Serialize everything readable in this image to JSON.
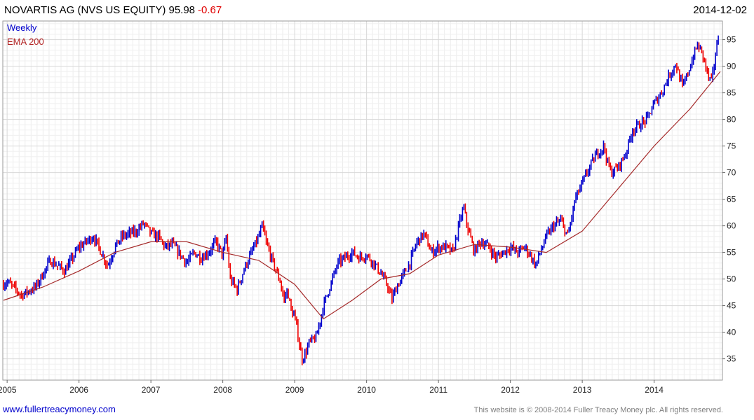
{
  "header": {
    "title": "NOVARTIS AG (NVS US EQUITY) 95.98",
    "change": "-0.67",
    "date": "2014-12-02"
  },
  "legend": {
    "weekly": "Weekly",
    "ema": "EMA 200"
  },
  "footer": {
    "site": "www.fullertreacymoney.com",
    "copyright": "This website is © 2008-2014 Fuller Treacy Money plc. All rights reserved."
  },
  "colors": {
    "up": "#0000cc",
    "down": "#ee0000",
    "ema": "#a52a2a",
    "grid": "#d8d8d8"
  },
  "chart_data": {
    "type": "line",
    "grid": true,
    "y_axis_side": "right",
    "xlim": [
      2004.94,
      2014.95
    ],
    "ylim": [
      31,
      98.5
    ],
    "x_ticks": [
      2005,
      2006,
      2007,
      2008,
      2009,
      2010,
      2011,
      2012,
      2013,
      2014
    ],
    "x_tick_labels": [
      "2005",
      "2006",
      "2007",
      "2008",
      "2009",
      "2010",
      "2011",
      "2012",
      "2013",
      "2014"
    ],
    "y_ticks": [
      35,
      40,
      45,
      50,
      55,
      60,
      65,
      70,
      75,
      80,
      85,
      90,
      95
    ],
    "y_tick_labels": [
      "35",
      "40",
      "45",
      "50",
      "55",
      "60",
      "65",
      "70",
      "75",
      "80",
      "85",
      "90",
      "95"
    ],
    "series": [
      {
        "name": "Weekly",
        "style": "ohlc bars, blue up / red down",
        "x": [
          2004.95,
          2005.0,
          2005.2,
          2005.4,
          2005.6,
          2005.8,
          2006.0,
          2006.2,
          2006.4,
          2006.5,
          2006.6,
          2006.8,
          2006.9,
          2007.0,
          2007.1,
          2007.2,
          2007.3,
          2007.5,
          2007.6,
          2007.7,
          2007.8,
          2007.9,
          2008.0,
          2008.05,
          2008.1,
          2008.2,
          2008.3,
          2008.4,
          2008.5,
          2008.55,
          2008.6,
          2008.65,
          2008.7,
          2008.8,
          2008.85,
          2008.9,
          2008.95,
          2009.0,
          2009.05,
          2009.1,
          2009.15,
          2009.2,
          2009.3,
          2009.4,
          2009.5,
          2009.6,
          2009.7,
          2009.8,
          2009.9,
          2010.0,
          2010.1,
          2010.2,
          2010.3,
          2010.35,
          2010.4,
          2010.5,
          2010.6,
          2010.7,
          2010.8,
          2010.9,
          2011.0,
          2011.1,
          2011.2,
          2011.3,
          2011.35,
          2011.4,
          2011.5,
          2011.55,
          2011.6,
          2011.7,
          2011.8,
          2011.9,
          2012.0,
          2012.1,
          2012.2,
          2012.3,
          2012.35,
          2012.4,
          2012.5,
          2012.6,
          2012.7,
          2012.8,
          2012.9,
          2013.0,
          2013.1,
          2013.2,
          2013.3,
          2013.35,
          2013.4,
          2013.5,
          2013.6,
          2013.7,
          2013.8,
          2013.9,
          2014.0,
          2014.1,
          2014.2,
          2014.3,
          2014.35,
          2014.4,
          2014.5,
          2014.55,
          2014.6,
          2014.65,
          2014.7,
          2014.75,
          2014.8,
          2014.85,
          2014.9
        ],
        "y": [
          49,
          49.5,
          47,
          48.5,
          53.5,
          51.5,
          56,
          58,
          52.5,
          56,
          58,
          59,
          60.5,
          58.5,
          58,
          56,
          56.5,
          53,
          55,
          54,
          55,
          57,
          54.5,
          58,
          50,
          48,
          52,
          55,
          58,
          60,
          57,
          55,
          53,
          49.5,
          46,
          48,
          44,
          43,
          39,
          35,
          36,
          38,
          39,
          45,
          49,
          53,
          54,
          55,
          54,
          54.5,
          53,
          51,
          48.5,
          46,
          48,
          50.5,
          53,
          57,
          58.5,
          55,
          56,
          56,
          55,
          61,
          63.5,
          60,
          55,
          56.5,
          57,
          56,
          54,
          55,
          56,
          55,
          56,
          54,
          52.5,
          54.5,
          58,
          60,
          61,
          58,
          65,
          68,
          71,
          73.5,
          75,
          72,
          70,
          71,
          73.5,
          78,
          79,
          80,
          83,
          85,
          88,
          90.5,
          88,
          86,
          90,
          92,
          94,
          93,
          91,
          88,
          87,
          92,
          96
        ]
      },
      {
        "name": "EMA 200",
        "x": [
          2004.95,
          2005.5,
          2006.0,
          2006.5,
          2007.0,
          2007.5,
          2008.0,
          2008.5,
          2009.0,
          2009.4,
          2009.8,
          2010.2,
          2010.6,
          2011.0,
          2011.5,
          2012.0,
          2012.5,
          2013.0,
          2013.5,
          2014.0,
          2014.5,
          2014.92
        ],
        "y": [
          46,
          48.5,
          51.5,
          55,
          57,
          57,
          55,
          53.5,
          49,
          42.5,
          46,
          50,
          51,
          54.5,
          56.5,
          56,
          55,
          59,
          67,
          75,
          82,
          89
        ]
      }
    ]
  }
}
